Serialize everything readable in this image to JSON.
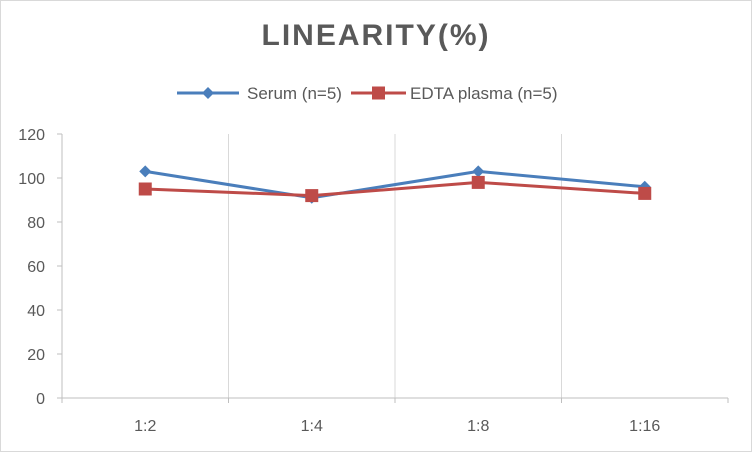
{
  "chart_data": {
    "type": "line",
    "title": "LINEARITY(%)",
    "categories": [
      "1:2",
      "1:4",
      "1:8",
      "1:16"
    ],
    "ylim": [
      0,
      120
    ],
    "yticks": [
      0,
      20,
      40,
      60,
      80,
      100,
      120
    ],
    "grid": {
      "vertical": true,
      "horizontal": false
    },
    "legend_position": "top",
    "series": [
      {
        "name": "Serum (n=5)",
        "values": [
          103,
          91,
          103,
          96
        ],
        "color": "#4a7ebb",
        "marker": "diamond"
      },
      {
        "name": "EDTA plasma (n=5)",
        "values": [
          95,
          92,
          98,
          93
        ],
        "color": "#be4b48",
        "marker": "square"
      }
    ]
  }
}
